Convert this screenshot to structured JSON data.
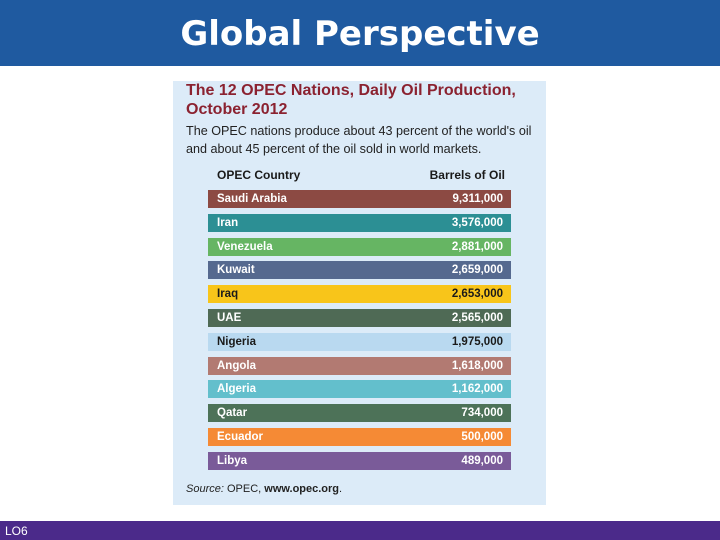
{
  "slide": {
    "title": "Global Perspective",
    "footer_label": "LO6"
  },
  "panel": {
    "title_line1": "The 12 OPEC Nations, Daily Oil Production,",
    "title_line2": "October 2012",
    "description_line1": "The OPEC nations produce about 43 percent of the world's oil",
    "description_line2": "and about 45 percent of the oil sold in world markets.",
    "column_country": "OPEC Country",
    "column_barrels": "Barrels of Oil",
    "source_label": "Source:",
    "source_org": " OPEC, ",
    "source_url": "www.opec.org",
    "source_end": "."
  },
  "rows": [
    {
      "country": "Saudi Arabia",
      "barrels": "9,311,000",
      "color": "#8c4a43",
      "dark_text": false
    },
    {
      "country": "Iran",
      "barrels": "3,576,000",
      "color": "#2c8f94",
      "dark_text": false
    },
    {
      "country": "Venezuela",
      "barrels": "2,881,000",
      "color": "#66b563",
      "dark_text": false
    },
    {
      "country": "Kuwait",
      "barrels": "2,659,000",
      "color": "#55698f",
      "dark_text": false
    },
    {
      "country": "Iraq",
      "barrels": "2,653,000",
      "color": "#f8c51a",
      "dark_text": true
    },
    {
      "country": "UAE",
      "barrels": "2,565,000",
      "color": "#4f6a55",
      "dark_text": false
    },
    {
      "country": "Nigeria",
      "barrels": "1,975,000",
      "color": "#b9d9f0",
      "dark_text": true
    },
    {
      "country": "Angola",
      "barrels": "1,618,000",
      "color": "#b27a72",
      "dark_text": false
    },
    {
      "country": "Algeria",
      "barrels": "1,162,000",
      "color": "#63bfcc",
      "dark_text": false
    },
    {
      "country": "Qatar",
      "barrels": "734,000",
      "color": "#4d7258",
      "dark_text": false
    },
    {
      "country": "Ecuador",
      "barrels": "500,000",
      "color": "#f58a35",
      "dark_text": false
    },
    {
      "country": "Libya",
      "barrels": "489,000",
      "color": "#7a5b99",
      "dark_text": false
    }
  ]
}
